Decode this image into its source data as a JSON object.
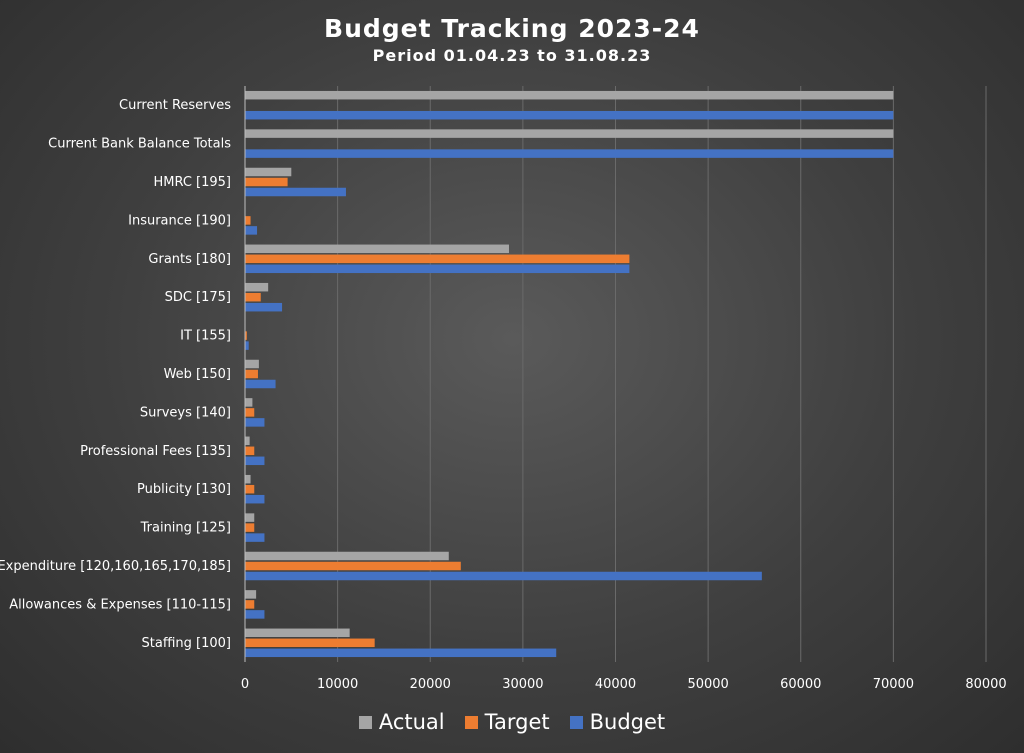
{
  "chart_data": {
    "type": "bar",
    "orientation": "horizontal",
    "title": "Budget Tracking 2023-24",
    "subtitle": "Period 01.04.23 to 31.08.23",
    "xlim": [
      0,
      80000
    ],
    "x_ticks": [
      "0",
      "10000",
      "20000",
      "30000",
      "40000",
      "50000",
      "60000",
      "70000",
      "80000"
    ],
    "grid": true,
    "legend_position": "bottom",
    "categories": [
      "Current Reserves",
      "Current Bank Balance Totals",
      "HMRC [195]",
      "Insurance [190]",
      "Grants [180]",
      "SDC [175]",
      "IT [155]",
      "Web [150]",
      "Surveys [140]",
      "Professional Fees  [135]",
      "Publicity [130]",
      "Training [125]",
      "Expenditure [120,160,165,170,185]",
      "Allowances & Expenses [110-115]",
      "Staffing [100]"
    ],
    "series": [
      {
        "name": "Actual",
        "color": "#a5a5a5",
        "values": [
          70000,
          70000,
          5000,
          0,
          28500,
          2500,
          0,
          1500,
          800,
          500,
          600,
          1000,
          22000,
          1200,
          11300
        ]
      },
      {
        "name": "Target",
        "color": "#ed7d31",
        "values": [
          0,
          0,
          4600,
          600,
          41500,
          1700,
          200,
          1400,
          1000,
          1000,
          1000,
          1000,
          23300,
          1000,
          14000
        ]
      },
      {
        "name": "Budget",
        "color": "#4472c4",
        "values": [
          70000,
          70000,
          10900,
          1300,
          41500,
          4000,
          400,
          3300,
          2100,
          2100,
          2100,
          2100,
          55800,
          2100,
          33600
        ]
      }
    ]
  }
}
